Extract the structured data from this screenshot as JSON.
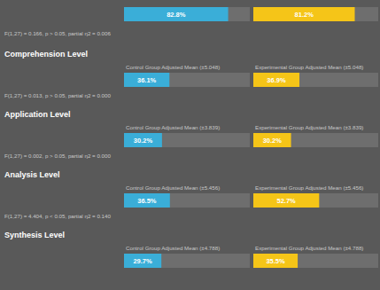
{
  "chart_data": [
    {
      "type": "bar",
      "orientation": "horizontal",
      "subtitle": "F(1,27) = 0.166, p > 0.05, partial η2 = 0.006",
      "categories": [
        null,
        null
      ],
      "values": [
        82.8,
        81.2
      ],
      "value_labels": [
        "82.8%",
        "81.2%"
      ],
      "colors": [
        "#3AAED8",
        "#F5C518"
      ],
      "xlim": [
        0,
        100
      ],
      "data_labels": true
    },
    {
      "type": "bar",
      "orientation": "horizontal",
      "title": "Comprehension Level",
      "subtitle": "F(1,27) = 0.013, p > 0.05, partial η2 = 0.000",
      "categories": [
        "Control Group Adjusted Mean (±5.048)",
        "Experimental Group Adjusted Mean (±5.048)"
      ],
      "values": [
        36.1,
        36.9
      ],
      "value_labels": [
        "36.1%",
        "36.9%"
      ],
      "colors": [
        "#3AAED8",
        "#F5C518"
      ],
      "xlim": [
        0,
        100
      ],
      "data_labels": true
    },
    {
      "type": "bar",
      "orientation": "horizontal",
      "title": "Application Level",
      "subtitle": "F(1,27) = 0.002, p > 0.05, partial η2 = 0.000",
      "categories": [
        "Control Group Adjusted Mean (±3.839)",
        "Experimental Group Adjusted Mean (±3.839)"
      ],
      "values": [
        30.2,
        30.2
      ],
      "value_labels": [
        "30.2%",
        "30.2%"
      ],
      "colors": [
        "#3AAED8",
        "#F5C518"
      ],
      "xlim": [
        0,
        100
      ],
      "data_labels": true
    },
    {
      "type": "bar",
      "orientation": "horizontal",
      "title": "Analysis Level",
      "subtitle": "F(1,27) = 4.404, p < 0.05, partial η2 = 0.140",
      "categories": [
        "Control Group Adjusted Mean (±5.456)",
        "Experimental Group Adjusted Mean (±5.456)"
      ],
      "values": [
        36.5,
        52.7
      ],
      "value_labels": [
        "36.5%",
        "52.7%"
      ],
      "colors": [
        "#3AAED8",
        "#F5C518"
      ],
      "xlim": [
        0,
        100
      ],
      "data_labels": true
    },
    {
      "type": "bar",
      "orientation": "horizontal",
      "title": "Synthesis Level",
      "categories": [
        "Control Group Adjusted Mean (±4.788)",
        "Experimental Group Adjusted Mean (±4.788)"
      ],
      "values": [
        29.7,
        35.5
      ],
      "value_labels": [
        "29.7%",
        "35.5%"
      ],
      "colors": [
        "#3AAED8",
        "#F5C518"
      ],
      "xlim": [
        0,
        100
      ],
      "data_labels": true
    }
  ]
}
